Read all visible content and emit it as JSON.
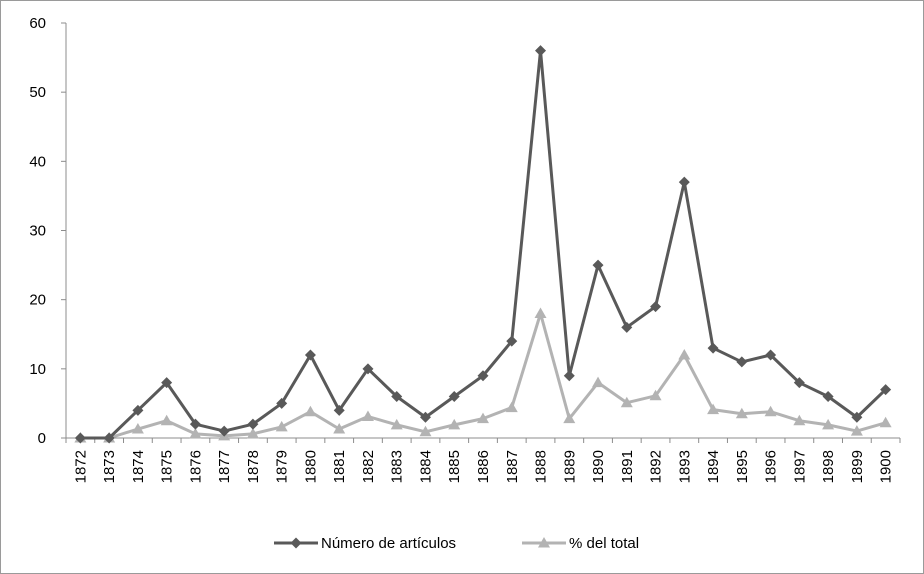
{
  "chart_data": {
    "type": "line",
    "title": "",
    "xlabel": "",
    "ylabel": "",
    "ylim": [
      0,
      60
    ],
    "yticks": [
      0,
      10,
      20,
      30,
      40,
      50,
      60
    ],
    "grid": false,
    "legend_position": "bottom",
    "categories": [
      "1872",
      "1873",
      "1874",
      "1875",
      "1876",
      "1877",
      "1878",
      "1879",
      "1880",
      "1881",
      "1882",
      "1883",
      "1884",
      "1885",
      "1886",
      "1887",
      "1888",
      "1889",
      "1890",
      "1891",
      "1892",
      "1893",
      "1894",
      "1895",
      "1896",
      "1897",
      "1898",
      "1899",
      "1900"
    ],
    "series": [
      {
        "name": "Número de artículos",
        "color": "#595959",
        "marker": "diamond",
        "values": [
          0,
          0,
          4,
          8,
          2,
          1,
          2,
          5,
          12,
          4,
          10,
          6,
          3,
          6,
          9,
          14,
          56,
          9,
          25,
          16,
          19,
          37,
          13,
          11,
          12,
          8,
          6,
          3,
          7
        ]
      },
      {
        "name": "% del total",
        "color": "#b3b3b3",
        "marker": "triangle",
        "values": [
          0,
          0,
          1.3,
          2.5,
          0.6,
          0.3,
          0.6,
          1.6,
          3.8,
          1.3,
          3.1,
          1.9,
          0.9,
          1.9,
          2.8,
          4.4,
          18,
          2.8,
          8,
          5.1,
          6.1,
          12,
          4.1,
          3.5,
          3.8,
          2.5,
          1.9,
          1,
          2.2
        ]
      }
    ]
  }
}
